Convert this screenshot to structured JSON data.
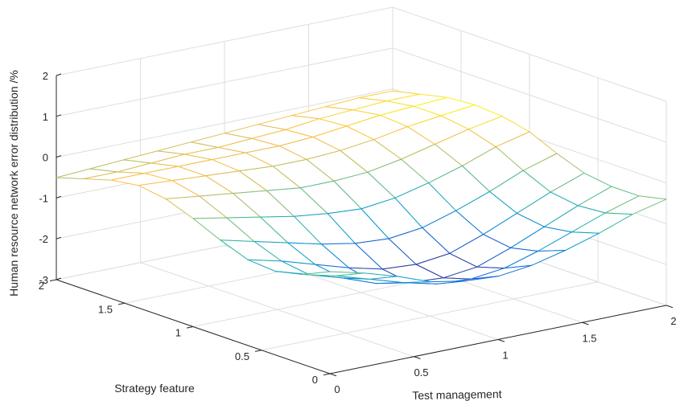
{
  "chart_data": {
    "type": "surface",
    "title": "",
    "xlabel": "Test management",
    "ylabel": "Strategy feature",
    "zlabel": "Human resource network error distribution /%",
    "xlim": [
      0,
      2
    ],
    "ylim": [
      0,
      2
    ],
    "zlim": [
      -3,
      2
    ],
    "x_ticks": [
      "0",
      "0.5",
      "1",
      "1.5",
      "2"
    ],
    "y_ticks": [
      "0",
      "0.5",
      "1",
      "1.5",
      "2"
    ],
    "z_ticks": [
      "-3",
      "-2",
      "-1",
      "0",
      "1",
      "2"
    ],
    "grid": true,
    "colormap": "parula",
    "x": [
      0,
      0.2,
      0.4,
      0.6,
      0.8,
      1.0,
      1.2,
      1.4,
      1.6,
      1.8,
      2.0
    ],
    "y": [
      0,
      0.2,
      0.4,
      0.6,
      0.8,
      1.0,
      1.2,
      1.4,
      1.6,
      1.8,
      2.0
    ],
    "z": [
      [
        -0.5,
        -0.7,
        -0.95,
        -1.25,
        -1.4,
        -1.45,
        -1.35,
        -1.15,
        -0.9,
        -0.6,
        -0.4
      ],
      [
        -0.8,
        -1.0,
        -1.25,
        -1.5,
        -1.7,
        -1.75,
        -1.65,
        -1.4,
        -1.1,
        -0.8,
        -0.55
      ],
      [
        -0.95,
        -1.2,
        -1.45,
        -1.75,
        -1.9,
        -1.95,
        -1.85,
        -1.55,
        -1.2,
        -0.85,
        -0.55
      ],
      [
        -0.9,
        -1.1,
        -1.35,
        -1.6,
        -1.8,
        -1.85,
        -1.75,
        -1.45,
        -1.1,
        -0.75,
        -0.45
      ],
      [
        -0.65,
        -0.85,
        -1.05,
        -1.25,
        -1.4,
        -1.45,
        -1.35,
        -1.1,
        -0.8,
        -0.45,
        -0.2
      ],
      [
        -0.35,
        -0.5,
        -0.65,
        -0.8,
        -0.9,
        -0.95,
        -0.85,
        -0.65,
        -0.4,
        -0.1,
        0.1
      ],
      [
        -0.1,
        -0.2,
        -0.3,
        -0.4,
        -0.5,
        -0.5,
        -0.45,
        -0.3,
        -0.1,
        0.1,
        0.25
      ],
      [
        0.0,
        -0.05,
        -0.1,
        -0.15,
        -0.2,
        -0.2,
        -0.15,
        -0.05,
        0.1,
        0.2,
        0.3
      ],
      [
        -0.1,
        -0.1,
        -0.1,
        -0.1,
        -0.1,
        -0.1,
        -0.05,
        0.05,
        0.15,
        0.2,
        0.25
      ],
      [
        -0.3,
        -0.3,
        -0.25,
        -0.2,
        -0.2,
        -0.15,
        -0.1,
        0.0,
        0.05,
        0.1,
        0.1
      ],
      [
        -0.5,
        -0.45,
        -0.4,
        -0.35,
        -0.3,
        -0.25,
        -0.2,
        -0.15,
        -0.1,
        -0.05,
        -0.05
      ]
    ]
  }
}
